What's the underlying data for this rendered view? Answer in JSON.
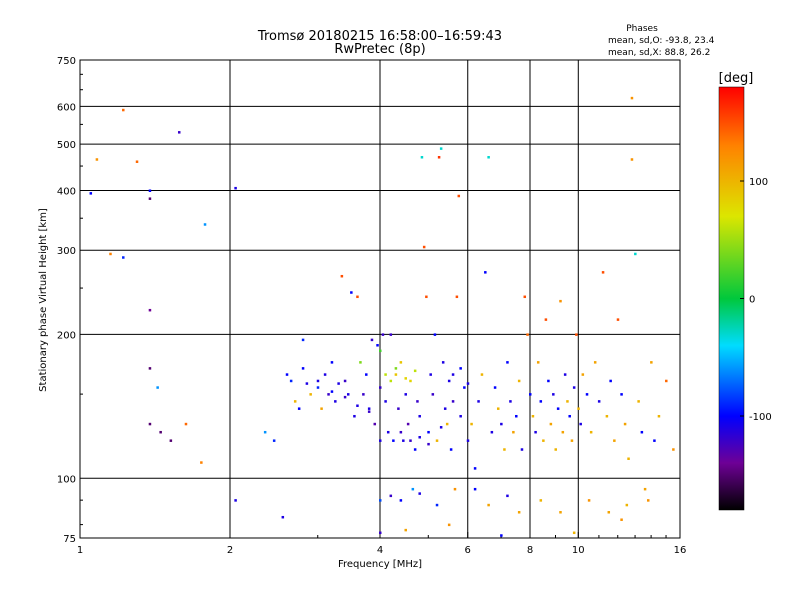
{
  "chart_data": {
    "type": "scatter",
    "title": "Tromsø 20180215 16:58:00–16:59:43",
    "subtitle": "RwPretec (8p)",
    "xlabel": "Frequency [MHz]",
    "ylabel": "Stationary phase Virtual Height [km]",
    "x_scale": "log",
    "y_scale": "log",
    "xlim": [
      1,
      16
    ],
    "ylim": [
      75,
      750
    ],
    "x_ticks": [
      1,
      2,
      4,
      6,
      8,
      10,
      16
    ],
    "y_ticks": [
      75,
      100,
      200,
      300,
      400,
      500,
      600,
      750
    ],
    "grid": true,
    "stats": {
      "title": "Phases",
      "line1": "mean, sd,O: -93.8, 23.4",
      "line2": "mean, sd,X:  88.8, 26.2"
    },
    "colorbar": {
      "label": "[deg]",
      "ticks": [
        "100",
        "0",
        "-100"
      ],
      "tick_values": [
        100,
        0,
        -100
      ],
      "range": [
        -180,
        180
      ],
      "colormap": "rainbow (black-purple-blue-cyan-green-yellow-orange-red)"
    },
    "points": [
      [
        1.05,
        395,
        -100
      ],
      [
        1.08,
        465,
        120
      ],
      [
        1.15,
        295,
        130
      ],
      [
        1.22,
        590,
        140
      ],
      [
        1.22,
        290,
        -90
      ],
      [
        1.3,
        460,
        140
      ],
      [
        1.38,
        400,
        -100
      ],
      [
        1.38,
        385,
        -150
      ],
      [
        1.38,
        225,
        -140
      ],
      [
        1.38,
        170,
        -150
      ],
      [
        1.38,
        130,
        -150
      ],
      [
        1.43,
        155,
        -60
      ],
      [
        1.45,
        125,
        -150
      ],
      [
        1.52,
        120,
        -150
      ],
      [
        1.58,
        530,
        -120
      ],
      [
        1.63,
        130,
        140
      ],
      [
        1.75,
        108,
        130
      ],
      [
        1.78,
        340,
        -60
      ],
      [
        2.05,
        405,
        -110
      ],
      [
        2.05,
        90,
        -110
      ],
      [
        2.35,
        125,
        -60
      ],
      [
        2.45,
        120,
        -90
      ],
      [
        2.55,
        83,
        -110
      ],
      [
        2.6,
        165,
        -100
      ],
      [
        2.65,
        160,
        -90
      ],
      [
        2.7,
        145,
        100
      ],
      [
        2.75,
        140,
        -100
      ],
      [
        2.8,
        195,
        -90
      ],
      [
        2.85,
        158,
        -110
      ],
      [
        2.9,
        150,
        100
      ],
      [
        3.0,
        155,
        -90
      ],
      [
        3.05,
        140,
        110
      ],
      [
        3.1,
        165,
        -110
      ],
      [
        3.15,
        150,
        -120
      ],
      [
        3.2,
        175,
        -100
      ],
      [
        3.25,
        145,
        -110
      ],
      [
        3.3,
        158,
        -110
      ],
      [
        3.35,
        265,
        150
      ],
      [
        3.4,
        160,
        -120
      ],
      [
        3.45,
        150,
        -110
      ],
      [
        3.5,
        245,
        -100
      ],
      [
        3.55,
        135,
        -110
      ],
      [
        3.6,
        240,
        150
      ],
      [
        3.65,
        175,
        40
      ],
      [
        3.7,
        150,
        -120
      ],
      [
        3.75,
        165,
        -100
      ],
      [
        3.8,
        140,
        -110
      ],
      [
        3.85,
        195,
        -120
      ],
      [
        3.9,
        130,
        -130
      ],
      [
        3.95,
        190,
        -100
      ],
      [
        4.0,
        120,
        -110
      ],
      [
        4.0,
        155,
        -120
      ],
      [
        4.0,
        185,
        20
      ],
      [
        4.0,
        90,
        -80
      ],
      [
        4.05,
        200,
        -120
      ],
      [
        4.1,
        145,
        -110
      ],
      [
        4.15,
        125,
        -110
      ],
      [
        4.2,
        160,
        60
      ],
      [
        4.25,
        120,
        -100
      ],
      [
        4.3,
        165,
        90
      ],
      [
        4.35,
        140,
        -120
      ],
      [
        4.4,
        175,
        90
      ],
      [
        4.45,
        120,
        -110
      ],
      [
        4.5,
        150,
        -110
      ],
      [
        4.55,
        130,
        -130
      ],
      [
        4.6,
        160,
        80
      ],
      [
        4.65,
        95,
        -60
      ],
      [
        4.7,
        115,
        -100
      ],
      [
        4.75,
        145,
        -120
      ],
      [
        4.8,
        135,
        -110
      ],
      [
        4.85,
        470,
        -30
      ],
      [
        4.9,
        305,
        150
      ],
      [
        4.95,
        240,
        150
      ],
      [
        5.0,
        125,
        -100
      ],
      [
        5.05,
        165,
        -110
      ],
      [
        5.1,
        150,
        -120
      ],
      [
        5.15,
        200,
        -100
      ],
      [
        5.2,
        120,
        100
      ],
      [
        5.25,
        470,
        160
      ],
      [
        5.3,
        490,
        -30
      ],
      [
        5.35,
        175,
        -110
      ],
      [
        5.4,
        140,
        -110
      ],
      [
        5.45,
        130,
        100
      ],
      [
        5.5,
        160,
        -110
      ],
      [
        5.55,
        115,
        -100
      ],
      [
        5.6,
        145,
        -120
      ],
      [
        5.65,
        95,
        120
      ],
      [
        5.7,
        240,
        150
      ],
      [
        5.75,
        390,
        150
      ],
      [
        5.8,
        135,
        -110
      ],
      [
        5.9,
        155,
        -100
      ],
      [
        6.0,
        120,
        -110
      ],
      [
        6.1,
        130,
        100
      ],
      [
        6.2,
        105,
        -100
      ],
      [
        6.3,
        145,
        -110
      ],
      [
        6.4,
        165,
        100
      ],
      [
        6.5,
        270,
        -100
      ],
      [
        6.6,
        470,
        -30
      ],
      [
        6.7,
        125,
        -110
      ],
      [
        6.8,
        155,
        -100
      ],
      [
        6.9,
        140,
        100
      ],
      [
        7.0,
        130,
        -110
      ],
      [
        7.1,
        115,
        100
      ],
      [
        7.2,
        175,
        -100
      ],
      [
        7.3,
        145,
        -110
      ],
      [
        7.4,
        125,
        110
      ],
      [
        7.5,
        135,
        -100
      ],
      [
        7.6,
        160,
        100
      ],
      [
        7.7,
        115,
        -110
      ],
      [
        7.8,
        240,
        150
      ],
      [
        7.9,
        200,
        140
      ],
      [
        8.0,
        150,
        -100
      ],
      [
        8.1,
        135,
        100
      ],
      [
        8.2,
        125,
        -110
      ],
      [
        8.3,
        175,
        110
      ],
      [
        8.4,
        145,
        -100
      ],
      [
        8.5,
        120,
        100
      ],
      [
        8.6,
        215,
        150
      ],
      [
        8.7,
        160,
        -100
      ],
      [
        8.8,
        130,
        110
      ],
      [
        8.9,
        150,
        -110
      ],
      [
        9.0,
        115,
        100
      ],
      [
        9.1,
        140,
        -100
      ],
      [
        9.2,
        235,
        120
      ],
      [
        9.3,
        125,
        110
      ],
      [
        9.4,
        165,
        -110
      ],
      [
        9.5,
        145,
        100
      ],
      [
        9.6,
        135,
        -100
      ],
      [
        9.7,
        120,
        110
      ],
      [
        9.8,
        155,
        -110
      ],
      [
        9.9,
        200,
        150
      ],
      [
        10.0,
        140,
        100
      ],
      [
        10.1,
        130,
        -110
      ],
      [
        10.2,
        165,
        110
      ],
      [
        10.4,
        150,
        -100
      ],
      [
        10.6,
        125,
        100
      ],
      [
        10.8,
        175,
        110
      ],
      [
        11.0,
        145,
        -110
      ],
      [
        11.2,
        270,
        150
      ],
      [
        11.4,
        135,
        100
      ],
      [
        11.6,
        160,
        -100
      ],
      [
        11.8,
        120,
        110
      ],
      [
        12.0,
        215,
        150
      ],
      [
        12.2,
        150,
        -100
      ],
      [
        12.4,
        130,
        110
      ],
      [
        12.6,
        110,
        100
      ],
      [
        12.8,
        625,
        120
      ],
      [
        12.8,
        465,
        120
      ],
      [
        13.0,
        295,
        -30
      ],
      [
        13.2,
        145,
        100
      ],
      [
        13.4,
        125,
        -100
      ],
      [
        13.6,
        95,
        110
      ],
      [
        13.8,
        90,
        120
      ],
      [
        14.0,
        175,
        110
      ],
      [
        14.2,
        120,
        -100
      ],
      [
        14.5,
        135,
        100
      ],
      [
        15.0,
        160,
        140
      ],
      [
        15.5,
        115,
        120
      ],
      [
        4.2,
        200,
        -120
      ],
      [
        4.4,
        125,
        -120
      ],
      [
        4.6,
        120,
        -120
      ],
      [
        4.8,
        122,
        -110
      ],
      [
        5.0,
        118,
        -120
      ],
      [
        5.3,
        128,
        -110
      ],
      [
        3.2,
        152,
        -100
      ],
      [
        3.4,
        148,
        -120
      ],
      [
        3.6,
        142,
        -110
      ],
      [
        3.8,
        138,
        -120
      ],
      [
        3.0,
        160,
        -110
      ],
      [
        2.8,
        170,
        -100
      ],
      [
        4.1,
        165,
        60
      ],
      [
        4.3,
        170,
        40
      ],
      [
        4.5,
        162,
        80
      ],
      [
        4.7,
        168,
        60
      ],
      [
        5.6,
        165,
        -110
      ],
      [
        5.8,
        170,
        -100
      ],
      [
        6.0,
        158,
        -110
      ],
      [
        4.2,
        92,
        -120
      ],
      [
        4.4,
        90,
        -100
      ],
      [
        4.8,
        93,
        -110
      ],
      [
        5.2,
        88,
        -90
      ],
      [
        6.2,
        95,
        -100
      ],
      [
        6.6,
        88,
        110
      ],
      [
        7.2,
        92,
        -110
      ],
      [
        7.6,
        85,
        110
      ],
      [
        8.4,
        90,
        100
      ],
      [
        9.2,
        85,
        110
      ],
      [
        10.5,
        90,
        120
      ],
      [
        11.5,
        85,
        110
      ],
      [
        12.5,
        88,
        100
      ],
      [
        4.0,
        77,
        -120
      ],
      [
        4.5,
        78,
        110
      ],
      [
        5.5,
        80,
        120
      ],
      [
        7.0,
        76,
        -100
      ],
      [
        9.8,
        77,
        100
      ],
      [
        12.2,
        82,
        120
      ]
    ]
  }
}
